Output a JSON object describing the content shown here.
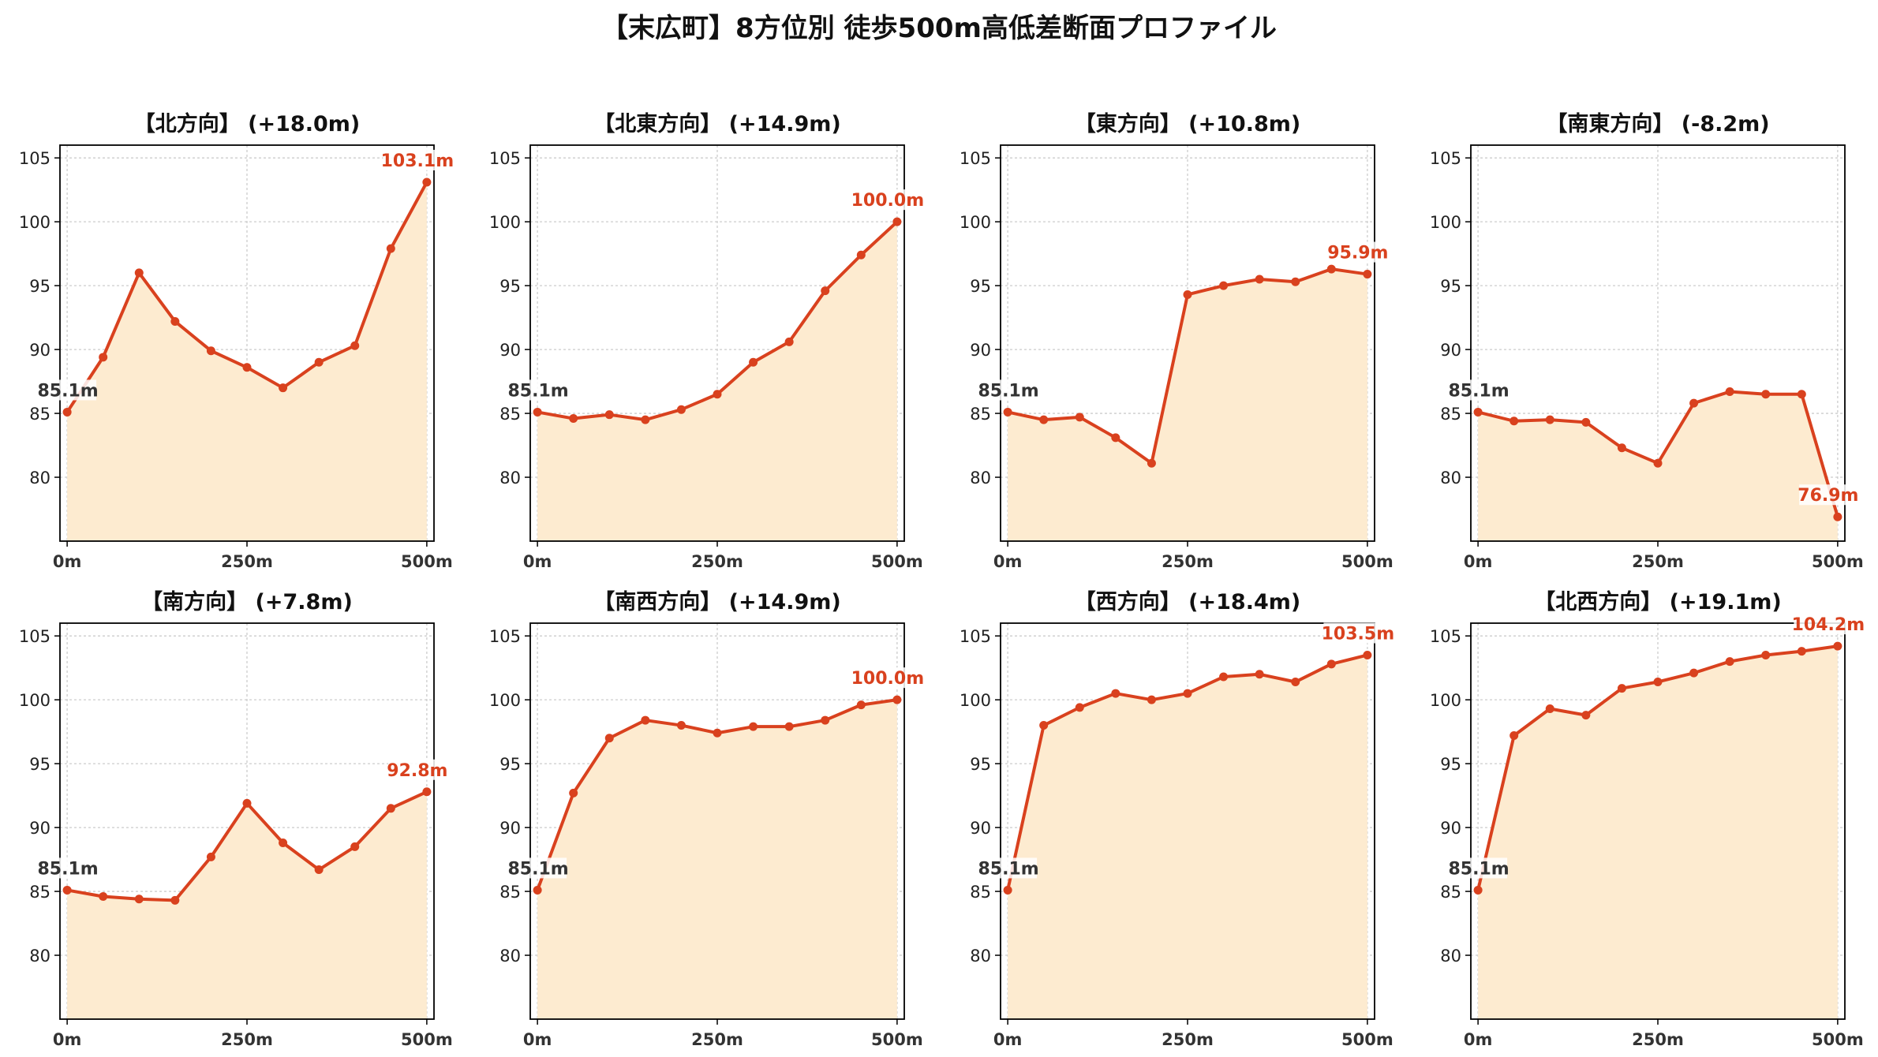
{
  "figure": {
    "title": "【末広町】8方位別 徒歩500m高低差断面プロファイル"
  },
  "colors": {
    "line": "#d9411e",
    "fill": "#fdebd0",
    "start_label": "#333333",
    "end_label": "#d9411e",
    "grid": "#cccccc"
  },
  "chart_data": [
    {
      "type": "area",
      "title": "【北方向】 (+18.0m)",
      "x": [
        0,
        50,
        100,
        150,
        200,
        250,
        300,
        350,
        400,
        450,
        500
      ],
      "values": [
        85.1,
        89.4,
        96.0,
        92.2,
        89.9,
        88.6,
        87.0,
        89.0,
        90.3,
        97.9,
        103.1
      ],
      "start_label": "85.1m",
      "end_label": "103.1m",
      "xticks": [
        "0m",
        "250m",
        "500m"
      ],
      "yticks": [
        80,
        85,
        90,
        95,
        100,
        105
      ],
      "ylim": [
        75,
        106
      ],
      "xlim": [
        -10,
        510
      ],
      "grid": true
    },
    {
      "type": "area",
      "title": "【北東方向】 (+14.9m)",
      "x": [
        0,
        50,
        100,
        150,
        200,
        250,
        300,
        350,
        400,
        450,
        500
      ],
      "values": [
        85.1,
        84.6,
        84.9,
        84.5,
        85.3,
        86.5,
        89.0,
        90.6,
        94.6,
        97.4,
        100.0
      ],
      "start_label": "85.1m",
      "end_label": "100.0m",
      "xticks": [
        "0m",
        "250m",
        "500m"
      ],
      "yticks": [
        80,
        85,
        90,
        95,
        100,
        105
      ],
      "ylim": [
        75,
        106
      ],
      "xlim": [
        -10,
        510
      ],
      "grid": true
    },
    {
      "type": "area",
      "title": "【東方向】 (+10.8m)",
      "x": [
        0,
        50,
        100,
        150,
        200,
        250,
        300,
        350,
        400,
        450,
        500
      ],
      "values": [
        85.1,
        84.5,
        84.7,
        83.1,
        81.1,
        94.3,
        95.0,
        95.5,
        95.3,
        96.3,
        95.9
      ],
      "start_label": "85.1m",
      "end_label": "95.9m",
      "xticks": [
        "0m",
        "250m",
        "500m"
      ],
      "yticks": [
        80,
        85,
        90,
        95,
        100,
        105
      ],
      "ylim": [
        75,
        106
      ],
      "xlim": [
        -10,
        510
      ],
      "grid": true
    },
    {
      "type": "area",
      "title": "【南東方向】 (-8.2m)",
      "x": [
        0,
        50,
        100,
        150,
        200,
        250,
        300,
        350,
        400,
        450,
        500
      ],
      "values": [
        85.1,
        84.4,
        84.5,
        84.3,
        82.3,
        81.1,
        85.8,
        86.7,
        86.5,
        86.5,
        76.9
      ],
      "start_label": "85.1m",
      "end_label": "76.9m",
      "xticks": [
        "0m",
        "250m",
        "500m"
      ],
      "yticks": [
        80,
        85,
        90,
        95,
        100,
        105
      ],
      "ylim": [
        75,
        106
      ],
      "xlim": [
        -10,
        510
      ],
      "grid": true
    },
    {
      "type": "area",
      "title": "【南方向】 (+7.8m)",
      "x": [
        0,
        50,
        100,
        150,
        200,
        250,
        300,
        350,
        400,
        450,
        500
      ],
      "values": [
        85.1,
        84.6,
        84.4,
        84.3,
        87.7,
        91.9,
        88.8,
        86.7,
        88.5,
        91.5,
        92.8
      ],
      "start_label": "85.1m",
      "end_label": "92.8m",
      "xticks": [
        "0m",
        "250m",
        "500m"
      ],
      "yticks": [
        80,
        85,
        90,
        95,
        100,
        105
      ],
      "ylim": [
        75,
        106
      ],
      "xlim": [
        -10,
        510
      ],
      "grid": true
    },
    {
      "type": "area",
      "title": "【南西方向】 (+14.9m)",
      "x": [
        0,
        50,
        100,
        150,
        200,
        250,
        300,
        350,
        400,
        450,
        500
      ],
      "values": [
        85.1,
        92.7,
        97.0,
        98.4,
        98.0,
        97.4,
        97.9,
        97.9,
        98.4,
        99.6,
        100.0
      ],
      "start_label": "85.1m",
      "end_label": "100.0m",
      "xticks": [
        "0m",
        "250m",
        "500m"
      ],
      "yticks": [
        80,
        85,
        90,
        95,
        100,
        105
      ],
      "ylim": [
        75,
        106
      ],
      "xlim": [
        -10,
        510
      ],
      "grid": true
    },
    {
      "type": "area",
      "title": "【西方向】 (+18.4m)",
      "x": [
        0,
        50,
        100,
        150,
        200,
        250,
        300,
        350,
        400,
        450,
        500
      ],
      "values": [
        85.1,
        98.0,
        99.4,
        100.5,
        100.0,
        100.5,
        101.8,
        102.0,
        101.4,
        102.8,
        103.5
      ],
      "start_label": "85.1m",
      "end_label": "103.5m",
      "xticks": [
        "0m",
        "250m",
        "500m"
      ],
      "yticks": [
        80,
        85,
        90,
        95,
        100,
        105
      ],
      "ylim": [
        75,
        106
      ],
      "xlim": [
        -10,
        510
      ],
      "grid": true
    },
    {
      "type": "area",
      "title": "【北西方向】 (+19.1m)",
      "x": [
        0,
        50,
        100,
        150,
        200,
        250,
        300,
        350,
        400,
        450,
        500
      ],
      "values": [
        85.1,
        97.2,
        99.3,
        98.8,
        100.9,
        101.4,
        102.1,
        103.0,
        103.5,
        103.8,
        104.2
      ],
      "start_label": "85.1m",
      "end_label": "104.2m",
      "xticks": [
        "0m",
        "250m",
        "500m"
      ],
      "yticks": [
        80,
        85,
        90,
        95,
        100,
        105
      ],
      "ylim": [
        75,
        106
      ],
      "xlim": [
        -10,
        510
      ],
      "grid": true
    }
  ]
}
